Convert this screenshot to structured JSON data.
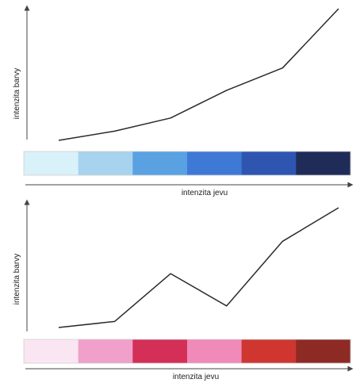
{
  "panels": [
    {
      "y_label": "intenzita barvy",
      "x_label": "intenzita jevu",
      "curve_values": [
        0.0,
        0.07,
        0.17,
        0.38,
        0.55,
        1.0
      ],
      "color_scale": [
        "#d9f1f8",
        "#a7d3ee",
        "#5aa1e2",
        "#3f79d6",
        "#2e56b1",
        "#1f2c58"
      ]
    },
    {
      "y_label": "intenzita barvy",
      "x_label": "intenzita jevu",
      "curve_values": [
        0.0,
        0.05,
        0.45,
        0.18,
        0.72,
        1.0
      ],
      "color_scale": [
        "#fae6f2",
        "#f0a0cb",
        "#d42f57",
        "#ef8ab9",
        "#cf3630",
        "#8e2a24"
      ]
    }
  ]
}
